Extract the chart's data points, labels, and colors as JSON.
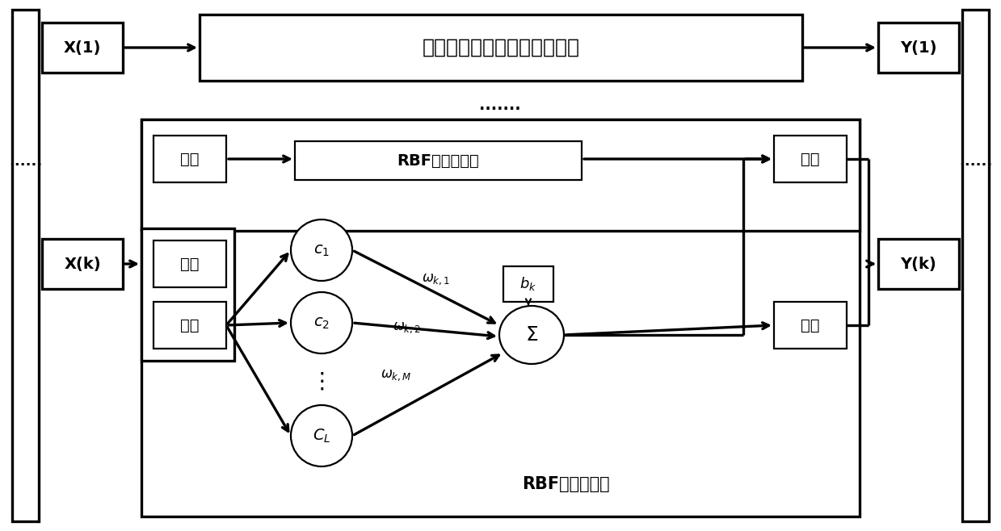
{
  "fig_width": 12.39,
  "fig_height": 6.58,
  "bg": "#ffffff",
  "lw1": 1.6,
  "lw2": 2.4,
  "labels": {
    "X1": "X(1)",
    "Xk": "X(k)",
    "Y1": "Y(1)",
    "Yk": "Y(k)",
    "top_box": "第一个子载波的神经网络单元",
    "rbf_inner": "RBF神经子网络",
    "real_in": "实部",
    "imag_in": "虚部",
    "real_out": "实部",
    "imag_out": "虚部",
    "dots_left": "......",
    "dots_right": "......",
    "dots_mid": ".......",
    "rbf_label": "RBF神经子网络"
  }
}
